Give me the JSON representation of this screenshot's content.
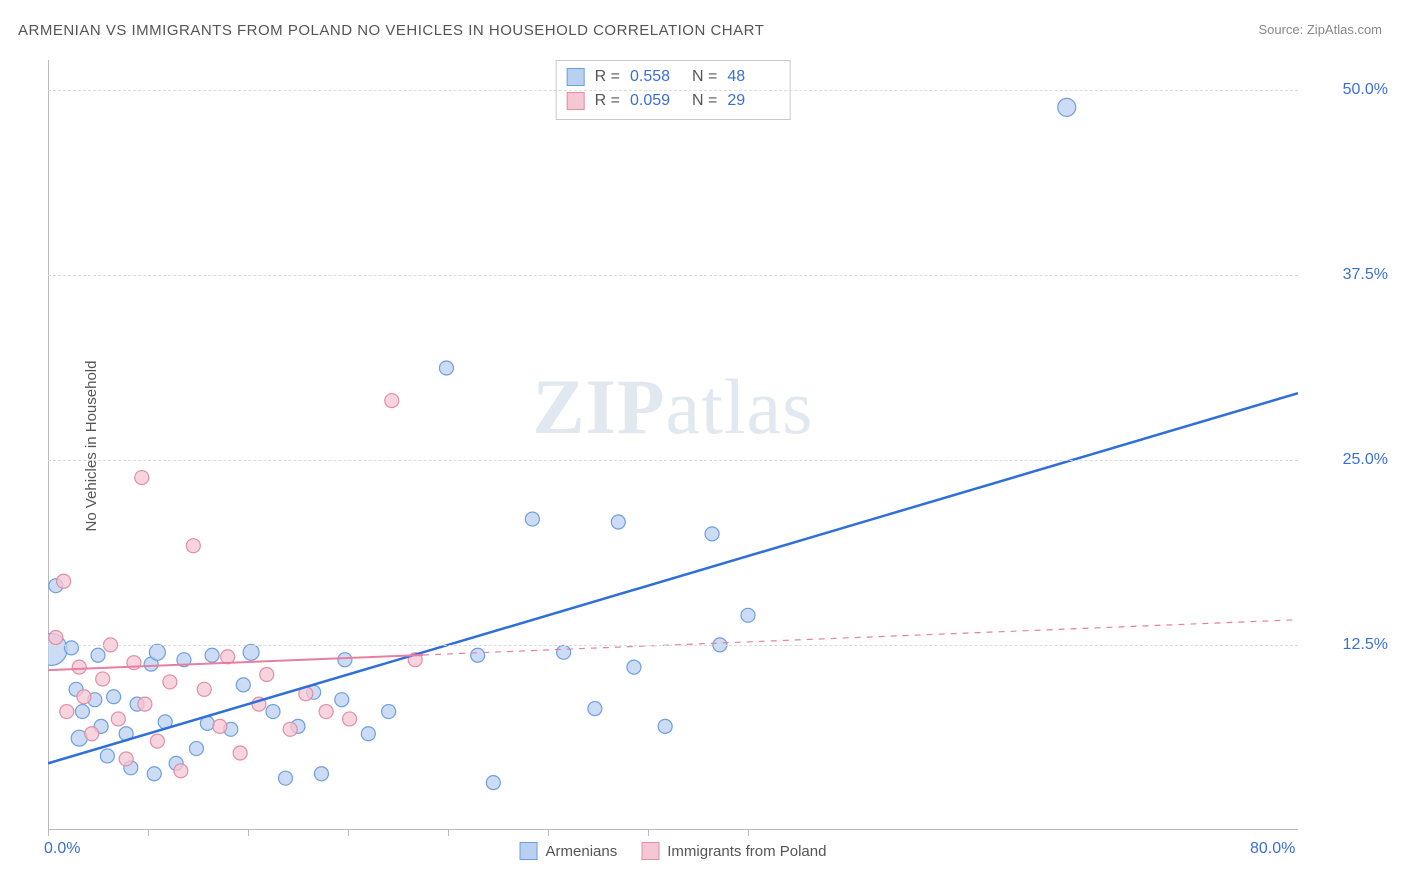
{
  "title": "ARMENIAN VS IMMIGRANTS FROM POLAND NO VEHICLES IN HOUSEHOLD CORRELATION CHART",
  "source": "Source: ZipAtlas.com",
  "ylabel": "No Vehicles in Household",
  "watermark": "ZIPatlas",
  "chart": {
    "type": "scatter-with-regression",
    "xlim": [
      0,
      80
    ],
    "ylim": [
      0,
      52
    ],
    "x_axis_labels": [
      {
        "v": 0,
        "t": "0.0%"
      },
      {
        "v": 80,
        "t": "80.0%"
      }
    ],
    "y_axis_labels": [
      {
        "v": 12.5,
        "t": "12.5%"
      },
      {
        "v": 25.0,
        "t": "25.0%"
      },
      {
        "v": 37.5,
        "t": "37.5%"
      },
      {
        "v": 50.0,
        "t": "50.0%"
      }
    ],
    "x_ticks": [
      0,
      6.4,
      12.8,
      19.2,
      25.6,
      32,
      38.4,
      44.8
    ],
    "grid_color": "#dcdcdc",
    "axis_color": "#bababa",
    "background_color": "#ffffff",
    "series": [
      {
        "name": "Armenians",
        "marker_fill": "#b9d0f0",
        "marker_stroke": "#6f9fe0",
        "marker_r": 8,
        "line_color": "#2f6fd6",
        "line_width": 2.5,
        "line_dash_after_data": false,
        "regression": {
          "x1": 0,
          "y1": 4.5,
          "x2": 80,
          "y2": 29.5
        },
        "solid_line_xmax": 80,
        "R": "0.558",
        "N": "48",
        "points": [
          [
            0.2,
            12.2,
            16
          ],
          [
            0.5,
            16.5,
            7
          ],
          [
            1.8,
            9.5,
            7
          ],
          [
            1.5,
            12.3,
            7
          ],
          [
            2.2,
            8.0,
            7
          ],
          [
            2.0,
            6.2,
            8
          ],
          [
            3.0,
            8.8,
            7
          ],
          [
            3.2,
            11.8,
            7
          ],
          [
            3.4,
            7.0,
            7
          ],
          [
            3.8,
            5.0,
            7
          ],
          [
            4.2,
            9.0,
            7
          ],
          [
            5.0,
            6.5,
            7
          ],
          [
            5.3,
            4.2,
            7
          ],
          [
            5.7,
            8.5,
            7
          ],
          [
            6.6,
            11.2,
            7
          ],
          [
            6.8,
            3.8,
            7
          ],
          [
            7.0,
            12.0,
            8
          ],
          [
            7.5,
            7.3,
            7
          ],
          [
            8.2,
            4.5,
            7
          ],
          [
            8.7,
            11.5,
            7
          ],
          [
            9.5,
            5.5,
            7
          ],
          [
            10.2,
            7.2,
            7
          ],
          [
            10.5,
            11.8,
            7
          ],
          [
            11.7,
            6.8,
            7
          ],
          [
            12.5,
            9.8,
            7
          ],
          [
            13.0,
            12.0,
            8
          ],
          [
            14.4,
            8.0,
            7
          ],
          [
            15.2,
            3.5,
            7
          ],
          [
            16.0,
            7.0,
            7
          ],
          [
            17.0,
            9.3,
            7
          ],
          [
            17.5,
            3.8,
            7
          ],
          [
            18.8,
            8.8,
            7
          ],
          [
            19.0,
            11.5,
            7
          ],
          [
            20.5,
            6.5,
            7
          ],
          [
            21.8,
            8.0,
            7
          ],
          [
            25.5,
            31.2,
            7
          ],
          [
            27.5,
            11.8,
            7
          ],
          [
            28.5,
            3.2,
            7
          ],
          [
            31.0,
            21.0,
            7
          ],
          [
            33.0,
            12.0,
            7
          ],
          [
            35.0,
            8.2,
            7
          ],
          [
            36.5,
            20.8,
            7
          ],
          [
            37.5,
            11.0,
            7
          ],
          [
            39.5,
            7.0,
            7
          ],
          [
            42.5,
            20.0,
            7
          ],
          [
            43.0,
            12.5,
            7
          ],
          [
            44.8,
            14.5,
            7
          ],
          [
            65.2,
            48.8,
            9
          ]
        ]
      },
      {
        "name": "Immigrants from Poland",
        "marker_fill": "#f5c6d4",
        "marker_stroke": "#e18fa8",
        "marker_r": 8,
        "line_color": "#e87fa0",
        "line_width": 2,
        "line_dash_after_data": true,
        "regression": {
          "x1": 0,
          "y1": 10.8,
          "x2": 80,
          "y2": 14.2
        },
        "solid_line_xmax": 24,
        "R": "0.059",
        "N": "29",
        "points": [
          [
            0.5,
            13.0,
            7
          ],
          [
            1.0,
            16.8,
            7
          ],
          [
            1.2,
            8.0,
            7
          ],
          [
            2.0,
            11.0,
            7
          ],
          [
            2.3,
            9.0,
            7
          ],
          [
            2.8,
            6.5,
            7
          ],
          [
            3.5,
            10.2,
            7
          ],
          [
            4.0,
            12.5,
            7
          ],
          [
            4.5,
            7.5,
            7
          ],
          [
            5.0,
            4.8,
            7
          ],
          [
            5.5,
            11.3,
            7
          ],
          [
            6.0,
            23.8,
            7
          ],
          [
            6.2,
            8.5,
            7
          ],
          [
            7.0,
            6.0,
            7
          ],
          [
            7.8,
            10.0,
            7
          ],
          [
            8.5,
            4.0,
            7
          ],
          [
            9.3,
            19.2,
            7
          ],
          [
            10.0,
            9.5,
            7
          ],
          [
            11.0,
            7.0,
            7
          ],
          [
            11.5,
            11.7,
            7
          ],
          [
            12.3,
            5.2,
            7
          ],
          [
            13.5,
            8.5,
            7
          ],
          [
            14.0,
            10.5,
            7
          ],
          [
            15.5,
            6.8,
            7
          ],
          [
            16.5,
            9.2,
            7
          ],
          [
            17.8,
            8.0,
            7
          ],
          [
            19.3,
            7.5,
            7
          ],
          [
            22.0,
            29.0,
            7
          ],
          [
            23.5,
            11.5,
            7
          ]
        ]
      }
    ]
  }
}
